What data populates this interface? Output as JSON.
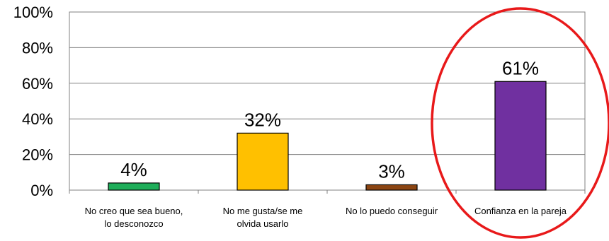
{
  "chart_data": {
    "type": "bar",
    "title": "",
    "xlabel": "",
    "ylabel": "",
    "categories": [
      [
        "No creo que sea bueno,",
        "lo desconozco"
      ],
      [
        "No me gusta/se me",
        "olvida usarlo"
      ],
      [
        "No lo puedo conseguir"
      ],
      [
        "Confianza en la pareja"
      ]
    ],
    "values": [
      4,
      32,
      3,
      61
    ],
    "data_labels": [
      "4%",
      "32%",
      "3%",
      "61%"
    ],
    "bar_colors": [
      "#1FAE5A",
      "#FFC000",
      "#8B4513",
      "#7030A0"
    ],
    "ylim": [
      0,
      100
    ],
    "yticks": [
      0,
      20,
      40,
      60,
      80,
      100
    ],
    "ytick_labels": [
      "0%",
      "20%",
      "40%",
      "60%",
      "80%",
      "100%"
    ],
    "grid": true,
    "highlight": {
      "category_index": 3,
      "shape": "ellipse",
      "color": "#E8191A"
    }
  }
}
